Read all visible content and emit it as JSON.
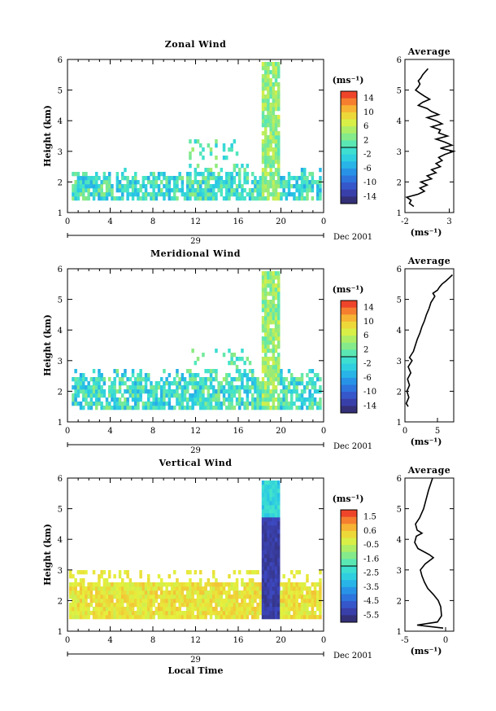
{
  "chart_data": [
    {
      "type": "heatmap",
      "title": "Zonal Wind",
      "xlabel": "",
      "ylabel": "Height (km)",
      "xlim": [
        0,
        24
      ],
      "ylim": [
        1,
        6
      ],
      "x_ticks": [
        "0",
        "4",
        "8",
        "12",
        "16",
        "20",
        "0"
      ],
      "y_ticks": [
        "1",
        "2",
        "3",
        "4",
        "5",
        "6"
      ],
      "date_label": "29",
      "month_label": "Dec 2001",
      "colorbar": {
        "unit": "(ms⁻¹)",
        "ticks": [
          "14",
          "10",
          "6",
          "2",
          "-2",
          "-6",
          "-10",
          "-14"
        ],
        "range": [
          -16,
          16
        ]
      },
      "profile": {
        "title": "Average",
        "xlabel": "(ms⁻¹)",
        "x_ticks": [
          "-2",
          "3"
        ],
        "xlim": [
          -2,
          3.5
        ],
        "points": [
          [
            -1.0,
            1.2
          ],
          [
            -1.5,
            1.3
          ],
          [
            -1.3,
            1.4
          ],
          [
            -1.8,
            1.5
          ],
          [
            -0.5,
            1.6
          ],
          [
            0.2,
            1.7
          ],
          [
            -0.3,
            1.8
          ],
          [
            0.5,
            1.9
          ],
          [
            -0.2,
            2.0
          ],
          [
            1.0,
            2.1
          ],
          [
            0.5,
            2.2
          ],
          [
            1.5,
            2.3
          ],
          [
            1.0,
            2.4
          ],
          [
            2.0,
            2.5
          ],
          [
            1.5,
            2.6
          ],
          [
            2.2,
            2.7
          ],
          [
            1.8,
            2.8
          ],
          [
            2.5,
            2.9
          ],
          [
            3.5,
            3.0
          ],
          [
            2.0,
            3.1
          ],
          [
            3.3,
            3.2
          ],
          [
            2.5,
            3.3
          ],
          [
            1.5,
            3.4
          ],
          [
            2.8,
            3.5
          ],
          [
            1.8,
            3.6
          ],
          [
            2.0,
            3.7
          ],
          [
            1.0,
            3.8
          ],
          [
            2.2,
            3.9
          ],
          [
            1.5,
            4.0
          ],
          [
            0.5,
            4.1
          ],
          [
            1.8,
            4.2
          ],
          [
            1.0,
            4.3
          ],
          [
            0.5,
            4.4
          ],
          [
            -0.5,
            4.5
          ],
          [
            0.0,
            4.6
          ],
          [
            0.8,
            4.7
          ],
          [
            0.2,
            4.8
          ],
          [
            -0.3,
            4.9
          ],
          [
            -0.8,
            5.0
          ],
          [
            -0.5,
            5.1
          ],
          [
            -0.3,
            5.2
          ],
          [
            -0.5,
            5.3
          ],
          [
            -0.2,
            5.4
          ],
          [
            0.0,
            5.5
          ],
          [
            0.3,
            5.6
          ],
          [
            0.6,
            5.7
          ]
        ]
      }
    },
    {
      "type": "heatmap",
      "title": "Meridional Wind",
      "xlabel": "",
      "ylabel": "Height (km)",
      "xlim": [
        0,
        24
      ],
      "ylim": [
        1,
        6
      ],
      "x_ticks": [
        "0",
        "4",
        "8",
        "12",
        "16",
        "20",
        "0"
      ],
      "y_ticks": [
        "1",
        "2",
        "3",
        "4",
        "5",
        "6"
      ],
      "date_label": "29",
      "month_label": "Dec 2001",
      "colorbar": {
        "unit": "(ms⁻¹)",
        "ticks": [
          "14",
          "10",
          "6",
          "2",
          "-2",
          "-6",
          "-10",
          "-14"
        ],
        "range": [
          -16,
          16
        ]
      },
      "profile": {
        "title": "Average",
        "xlabel": "(ms⁻¹)",
        "x_ticks": [
          "0",
          "5"
        ],
        "xlim": [
          0,
          7.5
        ],
        "points": [
          [
            0.5,
            1.5
          ],
          [
            0.2,
            1.6
          ],
          [
            0.6,
            1.8
          ],
          [
            0.3,
            2.0
          ],
          [
            0.7,
            2.2
          ],
          [
            0.4,
            2.4
          ],
          [
            0.9,
            2.6
          ],
          [
            0.5,
            2.8
          ],
          [
            1.1,
            3.0
          ],
          [
            0.7,
            3.1
          ],
          [
            1.3,
            3.3
          ],
          [
            1.6,
            3.5
          ],
          [
            1.9,
            3.7
          ],
          [
            2.3,
            3.9
          ],
          [
            2.6,
            4.1
          ],
          [
            3.0,
            4.3
          ],
          [
            3.3,
            4.5
          ],
          [
            3.7,
            4.7
          ],
          [
            4.0,
            4.9
          ],
          [
            4.6,
            5.1
          ],
          [
            4.3,
            5.2
          ],
          [
            5.0,
            5.3
          ],
          [
            5.3,
            5.4
          ],
          [
            5.7,
            5.5
          ],
          [
            6.3,
            5.6
          ],
          [
            6.8,
            5.7
          ],
          [
            7.3,
            5.8
          ]
        ]
      }
    },
    {
      "type": "heatmap",
      "title": "Vertical Wind",
      "xlabel": "Local Time",
      "ylabel": "Height (km)",
      "xlim": [
        0,
        24
      ],
      "ylim": [
        1,
        6
      ],
      "x_ticks": [
        "0",
        "4",
        "8",
        "12",
        "16",
        "20",
        "0"
      ],
      "y_ticks": [
        "1",
        "2",
        "3",
        "4",
        "5",
        "6"
      ],
      "date_label": "29",
      "month_label": "Dec 2001",
      "colorbar": {
        "unit": "(ms⁻¹)",
        "ticks": [
          "1.5",
          "0.6",
          "-0.5",
          "-1.6",
          "-2.5",
          "-3.5",
          "-4.5",
          "-5.5"
        ],
        "range": [
          -6,
          2
        ]
      },
      "profile": {
        "title": "Average",
        "xlabel": "(ms⁻¹)",
        "x_ticks": [
          "-5",
          "0"
        ],
        "xlim": [
          -5,
          1
        ],
        "points": [
          [
            -0.3,
            1.1
          ],
          [
            -3.5,
            1.2
          ],
          [
            -1.0,
            1.3
          ],
          [
            -0.5,
            1.5
          ],
          [
            -0.6,
            1.8
          ],
          [
            -0.9,
            2.0
          ],
          [
            -1.5,
            2.2
          ],
          [
            -2.2,
            2.4
          ],
          [
            -2.6,
            2.6
          ],
          [
            -2.9,
            2.8
          ],
          [
            -3.1,
            3.0
          ],
          [
            -2.5,
            3.2
          ],
          [
            -1.5,
            3.4
          ],
          [
            -2.0,
            3.5
          ],
          [
            -3.4,
            3.7
          ],
          [
            -3.8,
            3.9
          ],
          [
            -3.6,
            4.1
          ],
          [
            -2.9,
            4.2
          ],
          [
            -3.5,
            4.3
          ],
          [
            -3.7,
            4.5
          ],
          [
            -3.2,
            4.7
          ],
          [
            -2.7,
            5.0
          ],
          [
            -2.4,
            5.3
          ],
          [
            -2.1,
            5.6
          ],
          [
            -1.6,
            6.0
          ]
        ]
      }
    }
  ]
}
